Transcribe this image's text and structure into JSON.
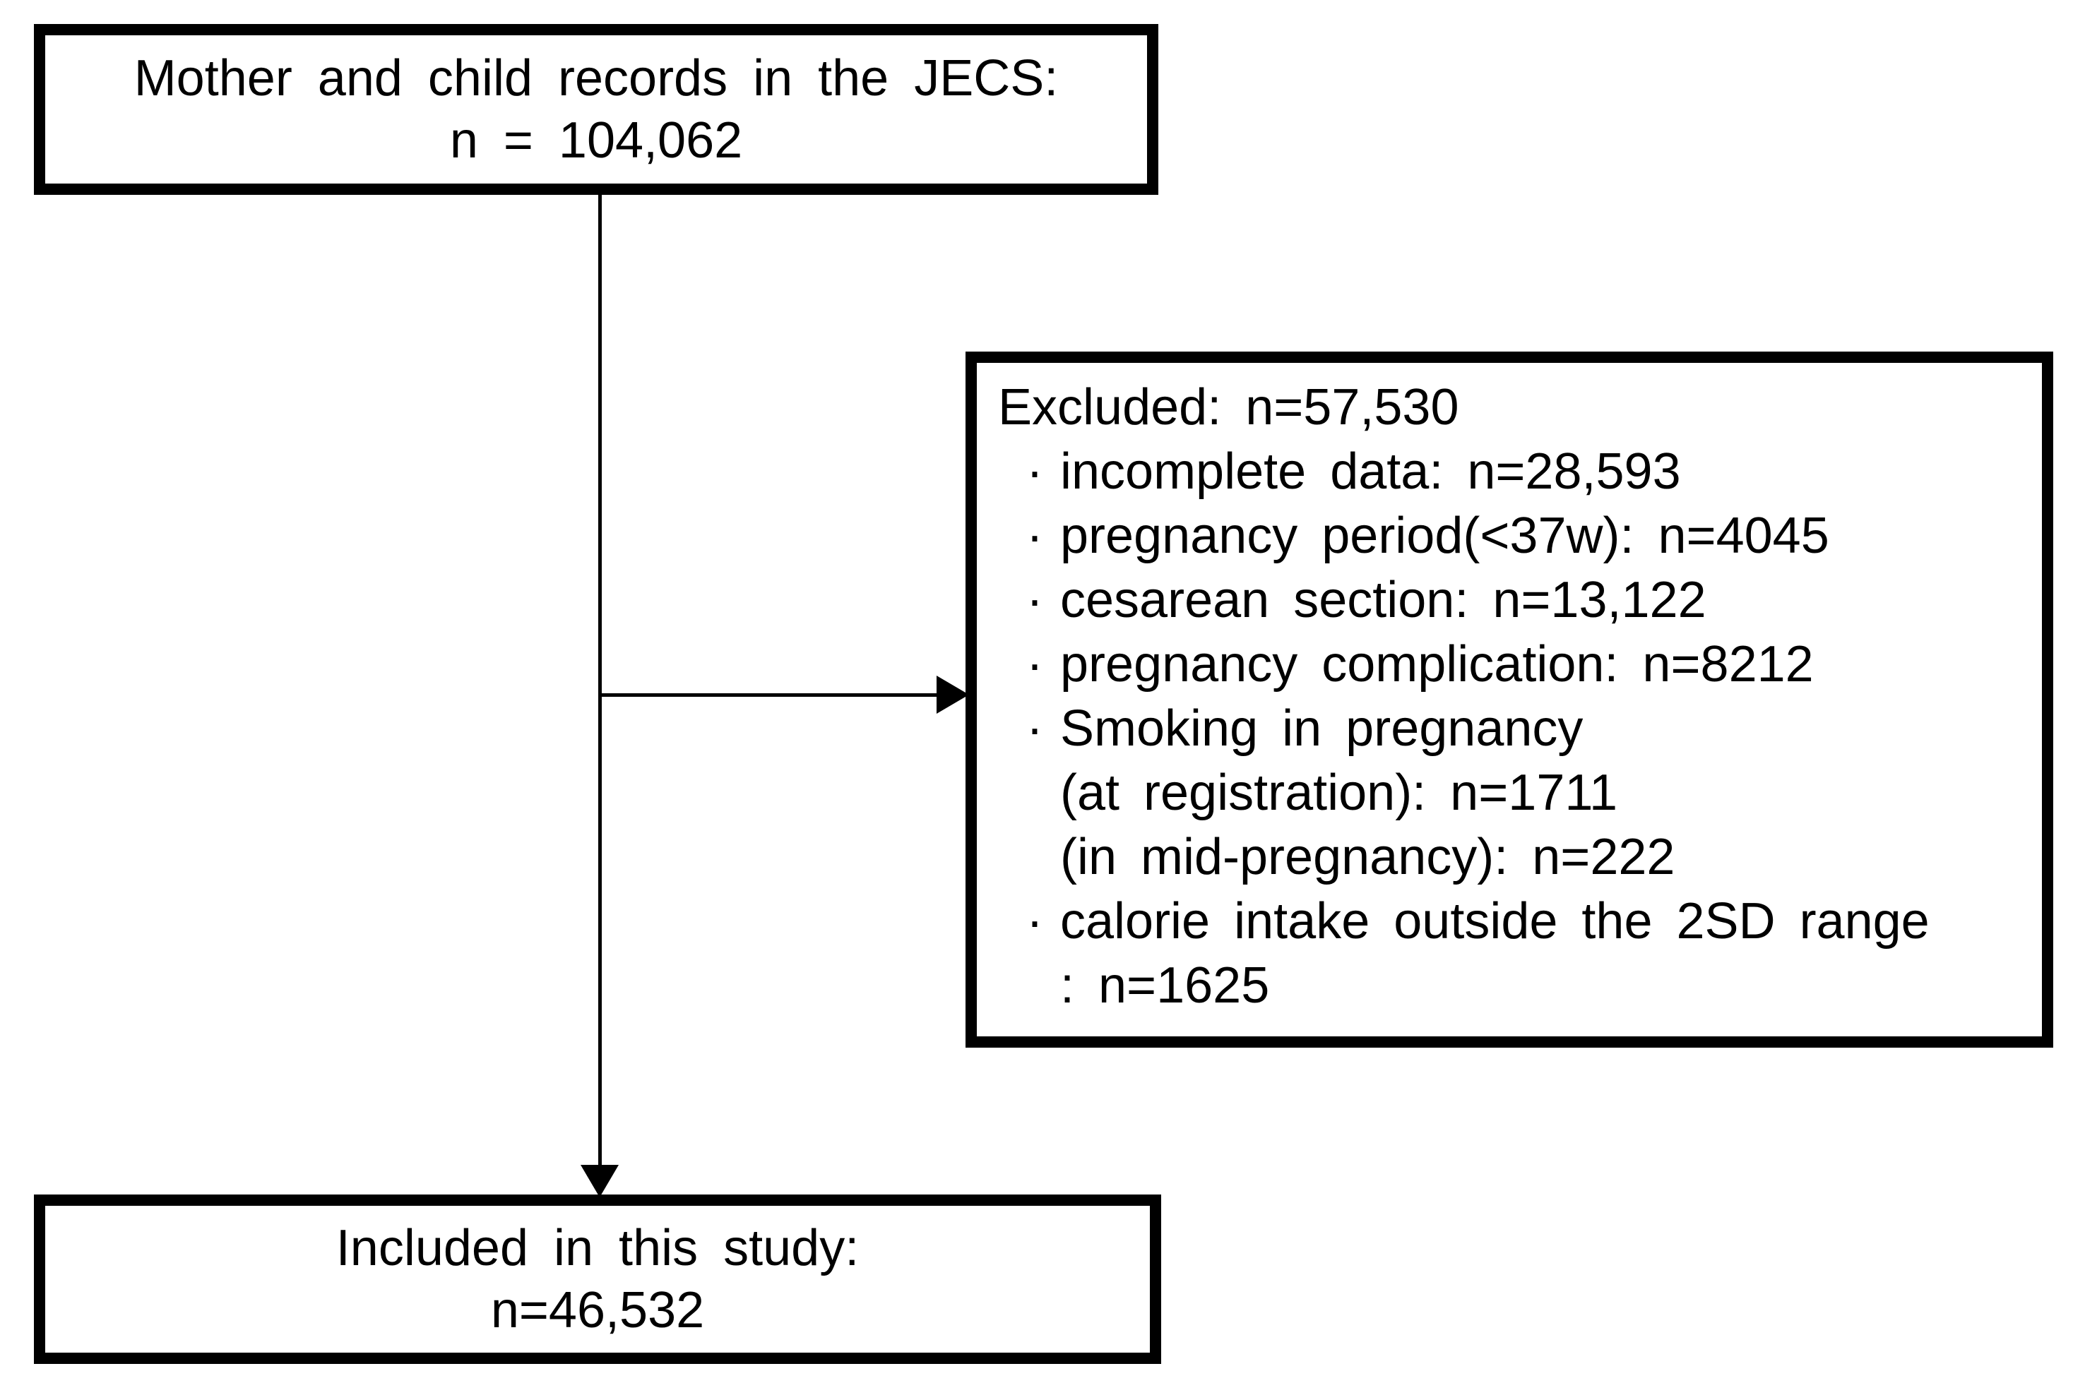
{
  "figure": {
    "background_color": "#ffffff",
    "line_color": "#000000"
  },
  "top_box": {
    "lines": [
      "Mother and child records in the JECS:",
      "n = 104,062"
    ]
  },
  "excluded_box": {
    "title": "Excluded:  n=57,530",
    "bullet_char": "·",
    "lines": [
      {
        "bullet": true,
        "text": "incomplete  data: n=28,593"
      },
      {
        "bullet": true,
        "text": "pregnancy  period(<37w):  n=4045"
      },
      {
        "bullet": true,
        "text": "cesarean section: n=13,122"
      },
      {
        "bullet": true,
        "text": "pregnancy  complication:  n=8212"
      },
      {
        "bullet": true,
        "text": "Smoking  in pregnancy"
      },
      {
        "bullet": false,
        "text": "(at registration): n=1711"
      },
      {
        "bullet": false,
        "text": "(in mid-pregnancy):  n=222"
      },
      {
        "bullet": true,
        "text": "calorie intake outside the 2SD range"
      },
      {
        "bullet": false,
        "text": ": n=1625"
      }
    ]
  },
  "bottom_box": {
    "lines": [
      "Included  in this study:",
      "n=46,532"
    ]
  }
}
